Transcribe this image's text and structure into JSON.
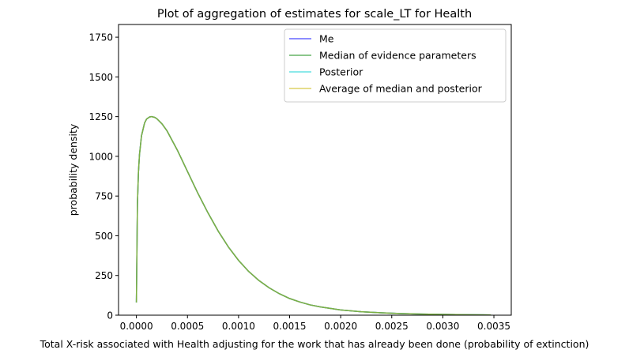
{
  "chart_data": {
    "type": "line",
    "title": "Plot of aggregation of estimates for scale_LT for Health",
    "xlabel": "Total X-risk associated with Health adjusting for the work that has already been done (probability of extinction)",
    "ylabel": "probability density",
    "xlim": [
      -0.000175,
      0.00367
    ],
    "ylim": [
      0,
      1830
    ],
    "xticks": [
      0.0,
      0.0005,
      0.001,
      0.0015,
      0.002,
      0.0025,
      0.003,
      0.0035
    ],
    "xtick_labels": [
      "0.0000",
      "0.0005",
      "0.0010",
      "0.0015",
      "0.0020",
      "0.0025",
      "0.0030",
      "0.0035"
    ],
    "yticks": [
      0,
      250,
      500,
      750,
      1000,
      1250,
      1500,
      1750
    ],
    "ytick_labels": [
      "0",
      "250",
      "500",
      "750",
      "1000",
      "1250",
      "1500",
      "1750"
    ],
    "grid": false,
    "legend_position": "top-right",
    "x": [
      0.0,
      1e-05,
      2e-05,
      3e-05,
      5e-05,
      8e-05,
      0.0001,
      0.00013,
      0.00015,
      0.00018,
      0.0002,
      0.00025,
      0.0003,
      0.0004,
      0.0005,
      0.0006,
      0.0007,
      0.0008,
      0.0009,
      0.001,
      0.0011,
      0.0012,
      0.0013,
      0.0014,
      0.0015,
      0.0016,
      0.0017,
      0.0018,
      0.002,
      0.0022,
      0.0024,
      0.0026,
      0.0028,
      0.003,
      0.0032,
      0.0034,
      0.00347
    ],
    "series": [
      {
        "name": "Me",
        "color": "#0000ff",
        "values": [
          80,
          700,
          900,
          1010,
          1130,
          1210,
          1235,
          1248,
          1250,
          1245,
          1237,
          1205,
          1160,
          1040,
          905,
          770,
          645,
          530,
          430,
          345,
          275,
          218,
          172,
          135,
          105,
          83,
          65,
          52,
          33,
          22,
          15,
          10,
          7,
          5,
          3,
          2,
          1
        ]
      },
      {
        "name": "Median of evidence parameters",
        "color": "#008000",
        "values": [
          80,
          700,
          900,
          1010,
          1130,
          1210,
          1235,
          1248,
          1250,
          1245,
          1237,
          1205,
          1160,
          1040,
          905,
          770,
          645,
          530,
          430,
          345,
          275,
          218,
          172,
          135,
          105,
          83,
          65,
          52,
          33,
          22,
          15,
          10,
          7,
          5,
          3,
          2,
          1
        ]
      },
      {
        "name": "Posterior",
        "color": "#00ced1",
        "values": [
          80,
          700,
          900,
          1010,
          1130,
          1210,
          1235,
          1248,
          1250,
          1245,
          1237,
          1205,
          1160,
          1040,
          905,
          770,
          645,
          530,
          430,
          345,
          275,
          218,
          172,
          135,
          105,
          83,
          65,
          52,
          33,
          22,
          15,
          10,
          7,
          5,
          3,
          2,
          1
        ]
      },
      {
        "name": "Average of median and posterior",
        "color": "#c8b400",
        "values": [
          80,
          700,
          900,
          1010,
          1130,
          1210,
          1235,
          1248,
          1250,
          1245,
          1237,
          1205,
          1160,
          1040,
          905,
          770,
          645,
          530,
          430,
          345,
          275,
          218,
          172,
          135,
          105,
          83,
          65,
          52,
          33,
          22,
          15,
          10,
          7,
          5,
          3,
          2,
          1
        ]
      }
    ]
  }
}
